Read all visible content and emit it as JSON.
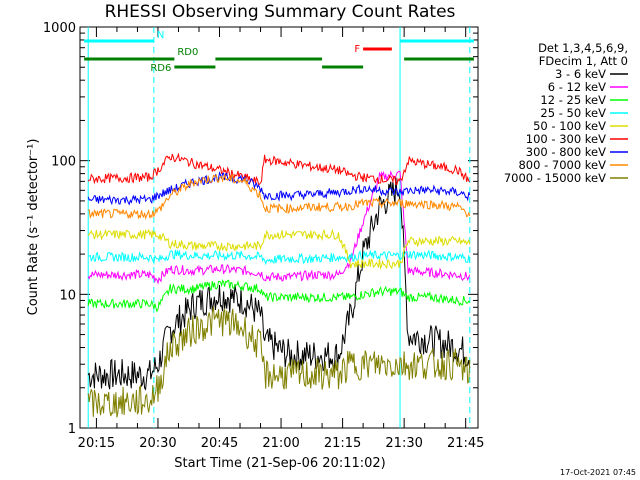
{
  "chart_data": {
    "type": "line",
    "title": "RHESSI Observing Summary Count Rates",
    "xlabel": "Start Time (21-Sep-06 20:11:02)",
    "ylabel": "Count Rate (s⁻¹ detector⁻¹)",
    "y_scale": "log",
    "xlim": [
      "20:11",
      "21:48"
    ],
    "ylim": [
      1,
      1000
    ],
    "x_tick_labels": [
      "20:15",
      "20:30",
      "20:45",
      "21:00",
      "21:15",
      "21:30",
      "21:45"
    ],
    "x_ticks": [
      "20:15",
      "20:30",
      "20:45",
      "21:00",
      "21:15",
      "21:30",
      "21:45"
    ],
    "y_tick_labels": [
      "1",
      "10",
      "100",
      "1000"
    ],
    "y_ticks": [
      1,
      10,
      100,
      1000
    ],
    "grid": false,
    "legend_placement": "right",
    "legend_header": [
      "Det 1,3,4,5,6,9,",
      "FDecim 1, Att 0"
    ],
    "x": [
      "20:13",
      "20:28",
      "20:30",
      "20:33",
      "20:39",
      "20:45",
      "20:51",
      "20:55",
      "20:56",
      "21:02",
      "21:08",
      "21:14",
      "21:17",
      "21:20",
      "21:24",
      "21:29",
      "21:31",
      "21:37",
      "21:43",
      "21:46"
    ],
    "series": [
      {
        "name": "3 - 6 keV",
        "color": "#000000",
        "values": [
          2.5,
          2.5,
          3.0,
          5.5,
          8.5,
          10.0,
          9.0,
          7.0,
          4.5,
          3.5,
          3.5,
          3.5,
          7.0,
          20.0,
          45.0,
          65.0,
          5.0,
          4.5,
          4.0,
          3.5
        ]
      },
      {
        "name": "6 - 12 keV",
        "color": "#ff00ff",
        "values": [
          14.0,
          14.0,
          13.0,
          15.5,
          15.0,
          15.5,
          15.0,
          14.5,
          13.5,
          13.5,
          14.0,
          14.0,
          18.0,
          35.0,
          75.0,
          80.0,
          15.0,
          14.5,
          14.0,
          13.5
        ]
      },
      {
        "name": "12 - 25 keV",
        "color": "#00ff00",
        "values": [
          8.5,
          8.5,
          8.0,
          11.0,
          11.0,
          12.0,
          11.5,
          11.0,
          9.5,
          9.5,
          9.5,
          9.5,
          9.5,
          10.0,
          10.5,
          10.5,
          9.5,
          9.5,
          9.0,
          9.0
        ]
      },
      {
        "name": "25 - 50 keV",
        "color": "#00ffff",
        "values": [
          19.0,
          19.0,
          18.0,
          20.0,
          19.5,
          19.5,
          19.5,
          19.0,
          18.0,
          18.5,
          18.5,
          19.0,
          19.0,
          19.5,
          19.5,
          19.5,
          20.0,
          19.5,
          19.0,
          18.5
        ]
      },
      {
        "name": "50 - 100 keV",
        "color": "#dddd00",
        "values": [
          28.0,
          28.0,
          28.0,
          24.0,
          23.0,
          23.0,
          23.0,
          23.0,
          28.0,
          28.0,
          28.0,
          28.0,
          17.0,
          17.0,
          17.0,
          17.0,
          25.0,
          25.0,
          25.0,
          24.0
        ]
      },
      {
        "name": "100 - 300 keV",
        "color": "#ff0000",
        "values": [
          73.0,
          75.0,
          85.0,
          108.0,
          95.0,
          85.0,
          75.0,
          68.0,
          102.0,
          96.0,
          90.0,
          85.0,
          78.0,
          75.0,
          73.0,
          70.0,
          100.0,
          92.0,
          85.0,
          70.0
        ]
      },
      {
        "name": "300 - 800 keV",
        "color": "#0000ff",
        "values": [
          51.0,
          51.0,
          55.0,
          60.0,
          70.0,
          75.0,
          73.0,
          62.0,
          55.0,
          55.0,
          56.0,
          58.0,
          60.0,
          62.0,
          60.0,
          58.0,
          60.0,
          60.0,
          58.0,
          54.0
        ]
      },
      {
        "name": "800 - 7000 keV",
        "color": "#ff8800",
        "values": [
          40.0,
          40.0,
          42.0,
          55.0,
          70.0,
          75.0,
          70.0,
          55.0,
          44.0,
          44.0,
          45.0,
          45.0,
          46.0,
          48.0,
          48.0,
          48.0,
          48.0,
          47.0,
          45.0,
          40.0
        ]
      },
      {
        "name": "7000 - 15000 keV",
        "color": "#808000",
        "values": [
          1.5,
          1.6,
          2.0,
          4.0,
          5.5,
          6.5,
          5.5,
          4.0,
          2.5,
          2.5,
          2.5,
          2.5,
          3.0,
          3.0,
          3.0,
          3.0,
          3.0,
          3.0,
          3.0,
          2.5
        ]
      }
    ],
    "vertical_markers": [
      {
        "x": "20:13",
        "style": "solid",
        "color": "#00ffff"
      },
      {
        "x": "20:29",
        "style": "dashed",
        "color": "#00ffff"
      },
      {
        "x": "21:29",
        "style": "solid",
        "color": "#00ffff"
      },
      {
        "x": "21:46",
        "style": "dashed",
        "color": "#00ffff"
      }
    ],
    "flag_bars": [
      {
        "label": "N",
        "color": "#00ffff",
        "row": 1,
        "segments": [
          [
            "20:12",
            "20:29"
          ],
          [
            "21:29",
            "21:47"
          ]
        ]
      },
      {
        "label": "F",
        "color": "#ff0000",
        "row": 2,
        "segments": [
          [
            "21:20",
            "21:27"
          ]
        ]
      },
      {
        "label": "RD0",
        "color": "#008000",
        "row": 3,
        "segments": [
          [
            "20:12",
            "20:34"
          ],
          [
            "20:44",
            "21:10"
          ],
          [
            "21:30",
            "21:47"
          ]
        ]
      },
      {
        "label": "RD6",
        "color": "#008000",
        "row": 4,
        "segments": [
          [
            "20:34",
            "20:44"
          ],
          [
            "21:10",
            "21:20"
          ]
        ]
      }
    ],
    "footer_date": "17-Oct-2021 07:45"
  }
}
